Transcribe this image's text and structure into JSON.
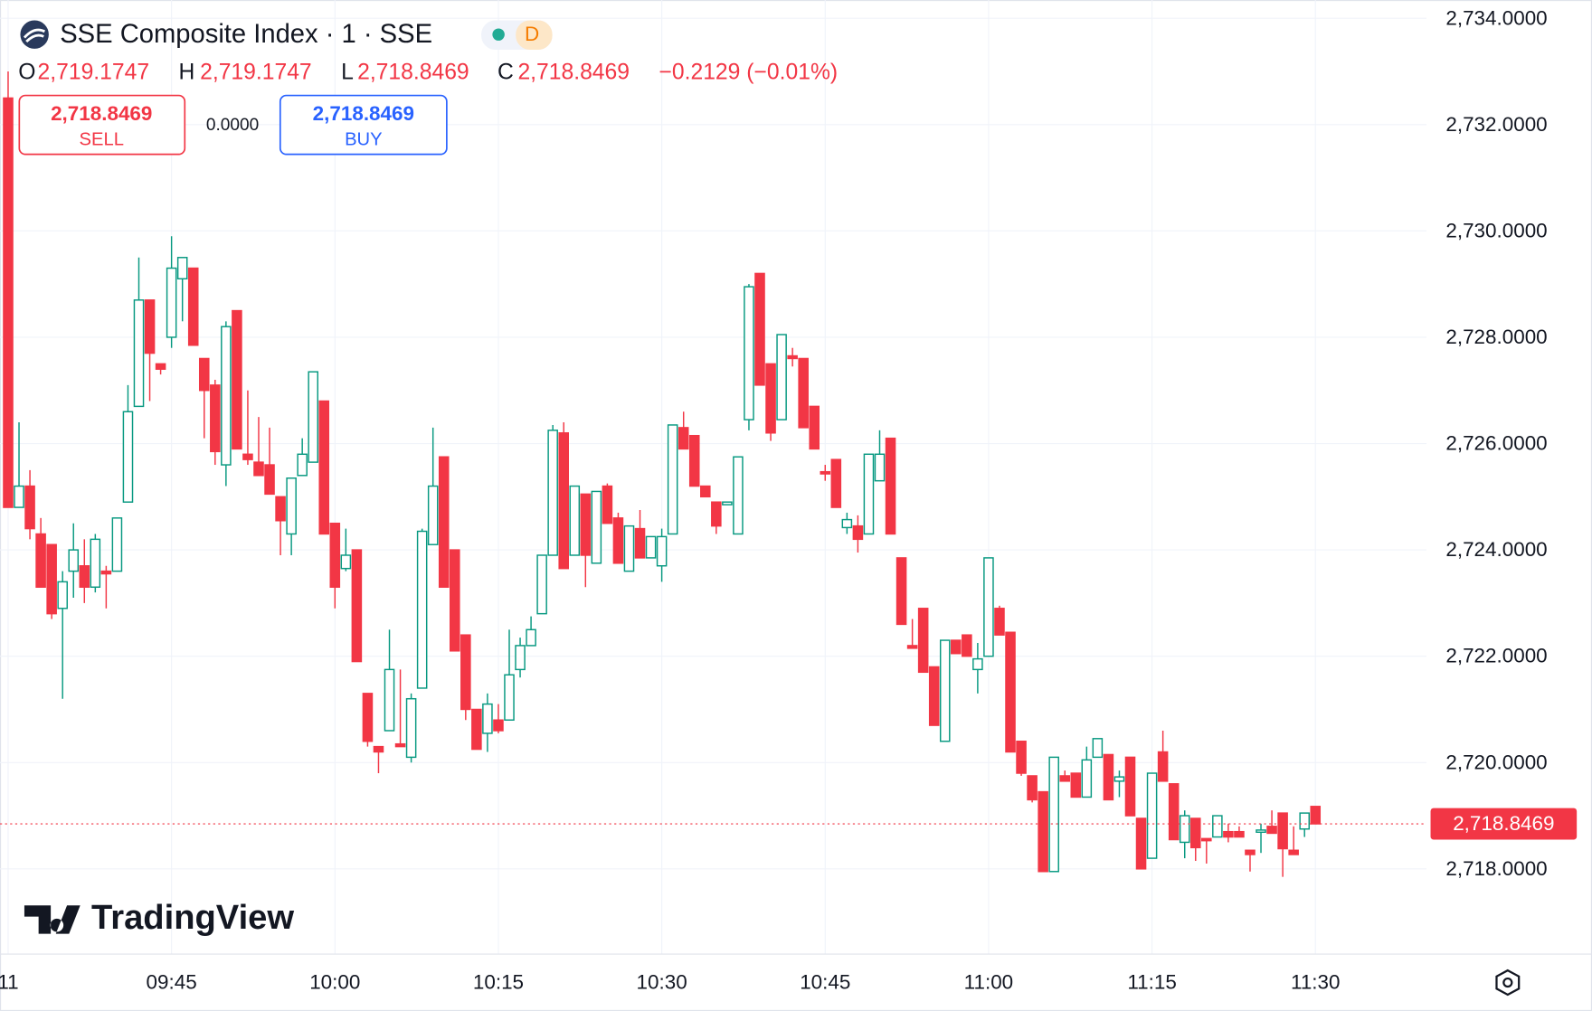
{
  "header": {
    "title": "SSE Composite Index · 1 · SSE",
    "interval_badge": "D",
    "ohlc": {
      "o_label": "O",
      "o": "2,719.1747",
      "h_label": "H",
      "h": "2,719.1747",
      "l_label": "L",
      "l": "2,718.8469",
      "c_label": "C",
      "c": "2,718.8469",
      "change": "−0.2129 (−0.01%)"
    },
    "sell": {
      "price": "2,718.8469",
      "label": "SELL"
    },
    "spread": "0.0000",
    "buy": {
      "price": "2,718.8469",
      "label": "BUY"
    },
    "brand": "TradingView"
  },
  "chart_data": {
    "type": "candlestick",
    "categories": [
      "11",
      null,
      null,
      null,
      null,
      null,
      null,
      null,
      null,
      null,
      null,
      null,
      null,
      null,
      null,
      "09:45",
      null,
      null,
      null,
      null,
      null,
      null,
      null,
      null,
      null,
      null,
      null,
      null,
      null,
      null,
      "10:00",
      null,
      null,
      null,
      null,
      null,
      null,
      null,
      null,
      null,
      null,
      null,
      null,
      null,
      null,
      "10:15",
      null,
      null,
      null,
      null,
      null,
      null,
      null,
      null,
      null,
      null,
      null,
      null,
      null,
      null,
      "10:30",
      null,
      null,
      null,
      null,
      null,
      null,
      null,
      null,
      null,
      null,
      null,
      null,
      null,
      null,
      "10:45",
      null,
      null,
      null,
      null,
      null,
      null,
      null,
      null,
      null,
      null,
      null,
      null,
      null,
      null,
      "11:00",
      null,
      null,
      null,
      null,
      null,
      null,
      null,
      null,
      null,
      null,
      null,
      null,
      null,
      null,
      "11:15",
      null,
      null,
      null,
      null,
      null,
      null,
      null,
      null,
      null,
      null,
      null,
      null,
      null,
      null,
      "11:30"
    ],
    "open": [
      2732.5,
      2724.8,
      2725.2,
      2724.3,
      2724.1,
      2722.9,
      2723.6,
      2723.7,
      2723.3,
      2723.6,
      2723.6,
      2724.9,
      2726.7,
      2728.7,
      2727.5,
      2728.0,
      2729.1,
      2729.3,
      2727.6,
      2727.1,
      2725.6,
      2728.5,
      2725.8,
      2725.65,
      2725.6,
      2725.0,
      2724.3,
      2725.4,
      2725.65,
      2726.8,
      2724.5,
      2723.65,
      2724.0,
      2721.3,
      2720.3,
      2720.6,
      2720.35,
      2720.1,
      2721.4,
      2724.1,
      2725.75,
      2724.0,
      2722.4,
      2721.0,
      2720.55,
      2720.8,
      2720.8,
      2721.75,
      2722.2,
      2722.8,
      2723.9,
      2726.2,
      2723.9,
      2725.05,
      2723.75,
      2725.2,
      2724.6,
      2723.6,
      2724.4,
      2723.85,
      2723.7,
      2724.3,
      2726.3,
      2726.15,
      2725.2,
      2724.9,
      2724.85,
      2724.3,
      2726.45,
      2729.2,
      2727.5,
      2726.45,
      2727.65,
      2727.6,
      2726.7,
      2725.47,
      2725.7,
      2724.42,
      2724.45,
      2724.3,
      2725.3,
      2726.1,
      2723.85,
      2722.2,
      2722.9,
      2721.8,
      2720.4,
      2722.3,
      2722.4,
      2721.75,
      2722.0,
      2722.9,
      2722.45,
      2720.4,
      2719.75,
      2719.45,
      2717.95,
      2719.75,
      2719.8,
      2719.35,
      2720.1,
      2720.15,
      2719.65,
      2720.1,
      2718.95,
      2718.2,
      2720.2,
      2719.6,
      2718.5,
      2718.95,
      2718.57,
      2718.6,
      2718.7,
      2718.7,
      2718.35,
      2718.69,
      2718.8,
      2719.05,
      2718.35,
      2718.75,
      2719.1747
    ],
    "high": [
      2733.0,
      2726.4,
      2725.5,
      2724.6,
      2724.1,
      2723.6,
      2724.5,
      2724.2,
      2724.3,
      2723.7,
      2724.6,
      2727.1,
      2729.5,
      2728.7,
      2727.5,
      2729.9,
      2729.5,
      2729.3,
      2727.6,
      2727.2,
      2728.3,
      2728.5,
      2727.0,
      2726.5,
      2726.3,
      2725.0,
      2725.35,
      2726.1,
      2727.35,
      2726.8,
      2724.5,
      2724.4,
      2724.0,
      2721.3,
      2720.3,
      2722.5,
      2721.75,
      2721.3,
      2724.4,
      2726.3,
      2725.75,
      2724.0,
      2722.4,
      2721.0,
      2721.3,
      2721.1,
      2722.5,
      2722.35,
      2722.75,
      2723.9,
      2726.35,
      2726.4,
      2725.2,
      2725.05,
      2725.1,
      2725.25,
      2724.7,
      2724.45,
      2724.75,
      2724.25,
      2724.4,
      2726.35,
      2726.6,
      2726.15,
      2725.2,
      2724.9,
      2724.9,
      2725.75,
      2729.0,
      2729.2,
      2727.5,
      2728.05,
      2727.8,
      2727.6,
      2726.7,
      2725.6,
      2725.7,
      2724.7,
      2724.65,
      2725.8,
      2726.25,
      2726.1,
      2723.85,
      2722.7,
      2722.9,
      2721.8,
      2722.3,
      2722.3,
      2722.4,
      2722.25,
      2723.85,
      2722.95,
      2722.45,
      2720.4,
      2719.75,
      2719.45,
      2720.1,
      2719.85,
      2719.8,
      2720.3,
      2720.45,
      2720.15,
      2719.85,
      2720.1,
      2718.95,
      2719.8,
      2720.6,
      2719.6,
      2719.1,
      2718.95,
      2718.57,
      2719.0,
      2718.85,
      2718.8,
      2718.35,
      2718.85,
      2719.1,
      2719.05,
      2718.8,
      2719.05,
      2719.1747
    ],
    "low": [
      2724.8,
      2724.8,
      2724.2,
      2723.3,
      2722.7,
      2721.2,
      2723.1,
      2723.0,
      2723.2,
      2722.9,
      2723.6,
      2724.9,
      2726.7,
      2726.8,
      2727.3,
      2727.8,
      2728.3,
      2727.85,
      2726.1,
      2725.6,
      2725.2,
      2725.9,
      2725.6,
      2725.4,
      2725.05,
      2723.9,
      2723.9,
      2725.4,
      2725.65,
      2724.3,
      2722.9,
      2723.6,
      2721.9,
      2720.3,
      2719.8,
      2720.6,
      2720.3,
      2720.0,
      2721.4,
      2724.1,
      2723.3,
      2722.1,
      2720.8,
      2720.25,
      2720.2,
      2720.55,
      2720.8,
      2721.6,
      2722.2,
      2722.8,
      2723.9,
      2723.65,
      2723.9,
      2723.3,
      2723.75,
      2724.5,
      2723.75,
      2723.6,
      2723.85,
      2723.85,
      2723.4,
      2724.3,
      2725.9,
      2725.2,
      2725.0,
      2724.3,
      2724.85,
      2724.3,
      2726.25,
      2727.1,
      2726.05,
      2726.45,
      2727.45,
      2726.3,
      2725.9,
      2725.3,
      2724.8,
      2724.3,
      2723.95,
      2724.3,
      2725.3,
      2724.3,
      2722.6,
      2722.15,
      2721.7,
      2720.7,
      2720.4,
      2722.05,
      2722.0,
      2721.3,
      2722.0,
      2722.4,
      2720.2,
      2719.75,
      2719.25,
      2717.95,
      2717.95,
      2719.65,
      2719.35,
      2719.35,
      2720.1,
      2719.3,
      2719.35,
      2719.0,
      2718.0,
      2718.2,
      2719.65,
      2718.55,
      2718.2,
      2718.15,
      2718.1,
      2718.6,
      2718.5,
      2718.6,
      2717.95,
      2718.3,
      2718.67,
      2717.85,
      2718.27,
      2718.6,
      2718.8469
    ],
    "close": [
      2724.8,
      2725.2,
      2724.4,
      2723.3,
      2722.8,
      2723.4,
      2724.0,
      2723.3,
      2724.2,
      2723.55,
      2724.6,
      2726.6,
      2728.7,
      2727.7,
      2727.4,
      2729.3,
      2729.5,
      2727.85,
      2727.0,
      2725.85,
      2728.2,
      2725.9,
      2725.7,
      2725.4,
      2725.05,
      2724.55,
      2725.35,
      2725.8,
      2727.35,
      2724.3,
      2723.3,
      2723.9,
      2721.9,
      2720.4,
      2720.2,
      2721.75,
      2720.3,
      2721.2,
      2724.35,
      2725.2,
      2723.3,
      2722.1,
      2721.0,
      2720.25,
      2721.1,
      2720.6,
      2721.65,
      2722.2,
      2722.5,
      2723.9,
      2726.25,
      2723.65,
      2725.2,
      2723.9,
      2725.1,
      2724.5,
      2723.75,
      2724.45,
      2723.85,
      2724.25,
      2724.25,
      2726.35,
      2725.9,
      2725.2,
      2725.0,
      2724.45,
      2724.9,
      2725.75,
      2728.95,
      2727.1,
      2726.2,
      2728.05,
      2727.6,
      2726.3,
      2725.9,
      2725.43,
      2724.8,
      2724.57,
      2724.2,
      2725.8,
      2725.8,
      2724.3,
      2722.6,
      2722.15,
      2721.7,
      2720.7,
      2722.3,
      2722.05,
      2722.0,
      2721.95,
      2723.85,
      2722.4,
      2720.2,
      2719.8,
      2719.3,
      2717.95,
      2720.1,
      2719.65,
      2719.35,
      2720.05,
      2720.45,
      2719.3,
      2719.73,
      2719.0,
      2718.0,
      2719.8,
      2719.65,
      2718.55,
      2719.0,
      2718.4,
      2718.53,
      2719.0,
      2718.6,
      2718.6,
      2718.27,
      2718.73,
      2718.67,
      2718.38,
      2718.27,
      2719.05,
      2718.8469
    ],
    "up_color": "#089981",
    "down_color": "#f23645",
    "ylim": [
      2716.4,
      2734.25
    ],
    "yticks": [
      {
        "value": 2718,
        "label": "2,718.0000"
      },
      {
        "value": 2720,
        "label": "2,720.0000"
      },
      {
        "value": 2722,
        "label": "2,722.0000"
      },
      {
        "value": 2724,
        "label": "2,724.0000"
      },
      {
        "value": 2726,
        "label": "2,726.0000"
      },
      {
        "value": 2728,
        "label": "2,728.0000"
      },
      {
        "value": 2730,
        "label": "2,730.0000"
      },
      {
        "value": 2732,
        "label": "2,732.0000"
      },
      {
        "value": 2734,
        "label": "2,734.0000"
      }
    ],
    "grid": true,
    "last_price": {
      "value": 2718.8469,
      "label": "2,718.8469"
    }
  }
}
